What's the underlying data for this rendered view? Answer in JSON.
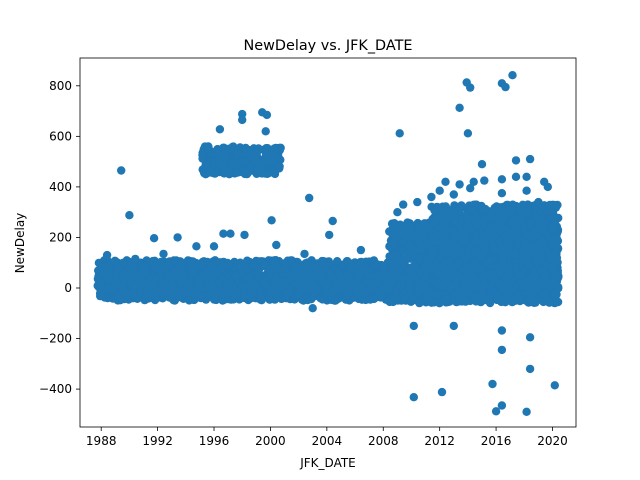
{
  "chart_data": {
    "type": "scatter",
    "title": "NewDelay vs. JFK_DATE",
    "xlabel": "JFK_DATE",
    "ylabel": "NewDelay",
    "xlim": [
      "1986-07-01",
      "2021-09-01"
    ],
    "ylim": [
      -550,
      910
    ],
    "x_ticks": [
      {
        "value": "1988-01-01",
        "label": "1988"
      },
      {
        "value": "1992-01-01",
        "label": "1992"
      },
      {
        "value": "1996-01-01",
        "label": "1996"
      },
      {
        "value": "2000-01-01",
        "label": "2000"
      },
      {
        "value": "2004-01-01",
        "label": "2004"
      },
      {
        "value": "2008-01-01",
        "label": "2008"
      },
      {
        "value": "2012-01-01",
        "label": "2012"
      },
      {
        "value": "2016-01-01",
        "label": "2016"
      },
      {
        "value": "2020-01-01",
        "label": "2020"
      }
    ],
    "y_ticks": [
      {
        "value": -400,
        "label": "−400"
      },
      {
        "value": -200,
        "label": "−200"
      },
      {
        "value": 0,
        "label": "0"
      },
      {
        "value": 200,
        "label": "200"
      },
      {
        "value": 400,
        "label": "400"
      },
      {
        "value": 600,
        "label": "600"
      },
      {
        "value": 800,
        "label": "800"
      }
    ],
    "grid": false,
    "marker_color": "#1f77b4",
    "bands": [
      {
        "x_start": "1987-10-01",
        "x_end": "2020-06-01",
        "y_min": -50,
        "y_max": 60
      },
      {
        "x_start": "1987-10-01",
        "x_end": "2008-06-01",
        "y_min": -40,
        "y_max": 110
      },
      {
        "x_start": "1995-03-01",
        "x_end": "2000-10-01",
        "y_min": 450,
        "y_max": 560
      },
      {
        "x_start": "2008-06-01",
        "x_end": "2020-06-01",
        "y_min": -60,
        "y_max": 260
      },
      {
        "x_start": "2011-06-01",
        "x_end": "2020-06-01",
        "y_min": 0,
        "y_max": 330
      }
    ],
    "points": [
      {
        "x": "1989-06-01",
        "y": 465
      },
      {
        "x": "1990-01-01",
        "y": 288
      },
      {
        "x": "1991-10-01",
        "y": 197
      },
      {
        "x": "1993-06-01",
        "y": 200
      },
      {
        "x": "1994-10-01",
        "y": 165
      },
      {
        "x": "1996-06-01",
        "y": 628
      },
      {
        "x": "1996-01-01",
        "y": 165
      },
      {
        "x": "1996-09-01",
        "y": 215
      },
      {
        "x": "1997-03-01",
        "y": 215
      },
      {
        "x": "1998-01-01",
        "y": 688
      },
      {
        "x": "1998-01-01",
        "y": 665
      },
      {
        "x": "1998-03-01",
        "y": 210
      },
      {
        "x": "1999-06-01",
        "y": 695
      },
      {
        "x": "1999-10-01",
        "y": 685
      },
      {
        "x": "1999-09-01",
        "y": 620
      },
      {
        "x": "2000-02-01",
        "y": 268
      },
      {
        "x": "2000-06-01",
        "y": 170
      },
      {
        "x": "2002-10-01",
        "y": 356
      },
      {
        "x": "2003-01-01",
        "y": -80
      },
      {
        "x": "2004-06-01",
        "y": 265
      },
      {
        "x": "2004-03-01",
        "y": 210
      },
      {
        "x": "2009-03-01",
        "y": 612
      },
      {
        "x": "2010-03-01",
        "y": -432
      },
      {
        "x": "2010-03-01",
        "y": -150
      },
      {
        "x": "2012-03-01",
        "y": -412
      },
      {
        "x": "2013-01-01",
        "y": -150
      },
      {
        "x": "2013-06-01",
        "y": 713
      },
      {
        "x": "2013-12-01",
        "y": 813
      },
      {
        "x": "2014-03-01",
        "y": 793
      },
      {
        "x": "2014-01-01",
        "y": 612
      },
      {
        "x": "2015-01-01",
        "y": 490
      },
      {
        "x": "2015-10-01",
        "y": -380
      },
      {
        "x": "2016-01-01",
        "y": -488
      },
      {
        "x": "2016-06-01",
        "y": -465
      },
      {
        "x": "2016-06-01",
        "y": -245
      },
      {
        "x": "2016-06-01",
        "y": -168
      },
      {
        "x": "2016-06-01",
        "y": 810
      },
      {
        "x": "2016-09-01",
        "y": 795
      },
      {
        "x": "2017-03-01",
        "y": 842
      },
      {
        "x": "2017-06-01",
        "y": 505
      },
      {
        "x": "2018-03-01",
        "y": -490
      },
      {
        "x": "2018-06-01",
        "y": -320
      },
      {
        "x": "2018-06-01",
        "y": -195
      },
      {
        "x": "2018-06-01",
        "y": 510
      },
      {
        "x": "2018-03-01",
        "y": 440
      },
      {
        "x": "2019-06-01",
        "y": 420
      },
      {
        "x": "2020-03-01",
        "y": -385
      },
      {
        "x": "2012-06-01",
        "y": 420
      },
      {
        "x": "2013-06-01",
        "y": 410
      },
      {
        "x": "2014-06-01",
        "y": 420
      },
      {
        "x": "2015-03-01",
        "y": 425
      },
      {
        "x": "2016-06-01",
        "y": 430
      },
      {
        "x": "2017-06-01",
        "y": 440
      },
      {
        "x": "2012-01-01",
        "y": 385
      },
      {
        "x": "2014-03-01",
        "y": 395
      },
      {
        "x": "2016-06-01",
        "y": 375
      },
      {
        "x": "2018-03-01",
        "y": 385
      },
      {
        "x": "2019-09-01",
        "y": 400
      },
      {
        "x": "2011-06-01",
        "y": 360
      },
      {
        "x": "2009-06-01",
        "y": 330
      },
      {
        "x": "2009-01-01",
        "y": 300
      },
      {
        "x": "2010-06-01",
        "y": 340
      },
      {
        "x": "2013-01-01",
        "y": 370
      },
      {
        "x": "2019-01-01",
        "y": 340
      },
      {
        "x": "2020-01-01",
        "y": 300
      },
      {
        "x": "1988-06-01",
        "y": 130
      },
      {
        "x": "1990-06-01",
        "y": 115
      },
      {
        "x": "1992-06-01",
        "y": 135
      },
      {
        "x": "2002-06-01",
        "y": 135
      },
      {
        "x": "2006-06-01",
        "y": 150
      }
    ]
  }
}
